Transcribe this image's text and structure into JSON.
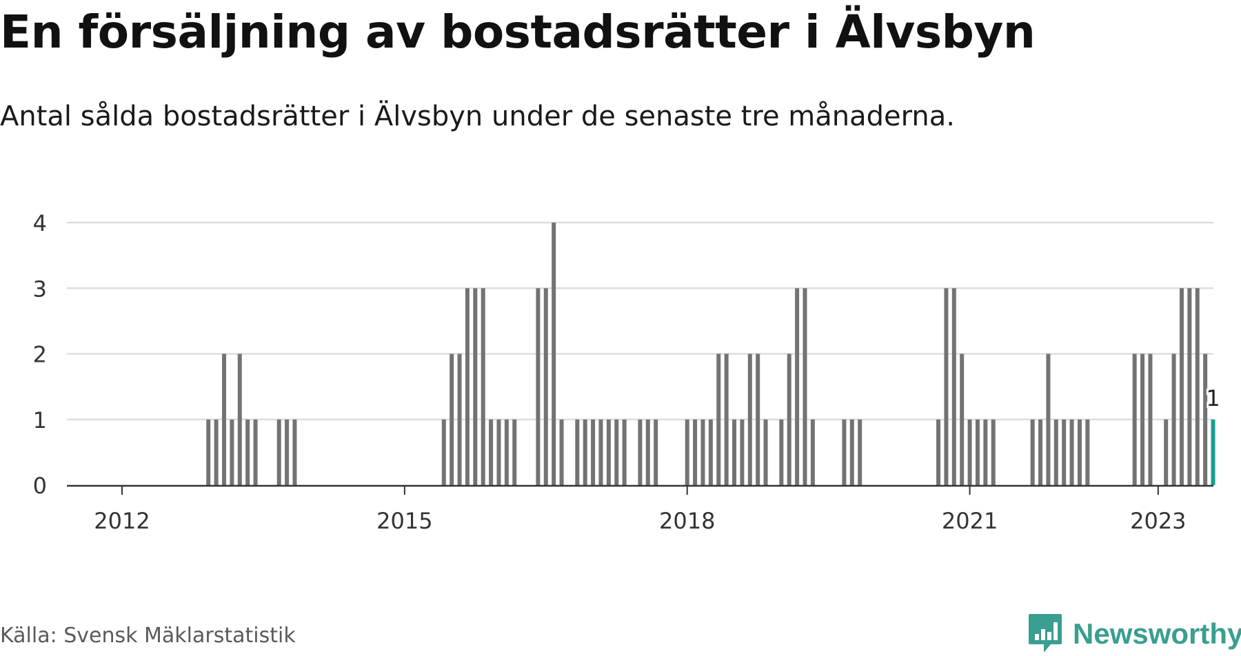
{
  "header": {
    "title": "En försäljning av bostadsrätter i Älvsbyn",
    "subtitle": "Antal sålda bostadsrätter i Älvsbyn under de senaste tre månaderna."
  },
  "footer": {
    "source": "Källa: Svensk Mäklarstatistik",
    "brand": "Newsworthy"
  },
  "colors": {
    "bar": "#737373",
    "highlight": "#1a9e8e",
    "grid": "#dddddd",
    "axis": "#333333",
    "brand": "#3a9e90"
  },
  "chart_data": {
    "type": "bar",
    "title": "En försäljning av bostadsrätter i Älvsbyn",
    "xlabel": "",
    "ylabel": "",
    "ylim": [
      0,
      4
    ],
    "yticks": [
      0,
      1,
      2,
      3,
      4
    ],
    "start_year": 2011,
    "start_month": 7,
    "x_ticks": [
      {
        "label": "2012",
        "year": 2012,
        "month": 1
      },
      {
        "label": "2015",
        "year": 2015,
        "month": 1
      },
      {
        "label": "2018",
        "year": 2018,
        "month": 1
      },
      {
        "label": "2021",
        "year": 2021,
        "month": 1
      },
      {
        "label": "2023",
        "year": 2023,
        "month": 1
      }
    ],
    "values": [
      0,
      0,
      0,
      0,
      0,
      0,
      0,
      0,
      0,
      0,
      0,
      0,
      0,
      0,
      0,
      0,
      0,
      1,
      1,
      2,
      1,
      2,
      1,
      1,
      0,
      0,
      1,
      1,
      1,
      0,
      0,
      0,
      0,
      0,
      0,
      0,
      0,
      0,
      0,
      0,
      0,
      0,
      0,
      0,
      0,
      0,
      0,
      1,
      2,
      2,
      3,
      3,
      3,
      1,
      1,
      1,
      1,
      0,
      0,
      3,
      3,
      4,
      1,
      0,
      1,
      1,
      1,
      1,
      1,
      1,
      1,
      0,
      1,
      1,
      1,
      0,
      0,
      0,
      1,
      1,
      1,
      1,
      2,
      2,
      1,
      1,
      2,
      2,
      1,
      0,
      1,
      2,
      3,
      3,
      1,
      0,
      0,
      0,
      1,
      1,
      1,
      0,
      0,
      0,
      0,
      0,
      0,
      0,
      0,
      0,
      1,
      3,
      3,
      2,
      1,
      1,
      1,
      1,
      0,
      0,
      0,
      0,
      1,
      1,
      2,
      1,
      1,
      1,
      1,
      1,
      0,
      0,
      0,
      0,
      0,
      2,
      2,
      2,
      0,
      1,
      2,
      3,
      3,
      3,
      2,
      1
    ],
    "highlight_last": true,
    "last_label": "1"
  }
}
